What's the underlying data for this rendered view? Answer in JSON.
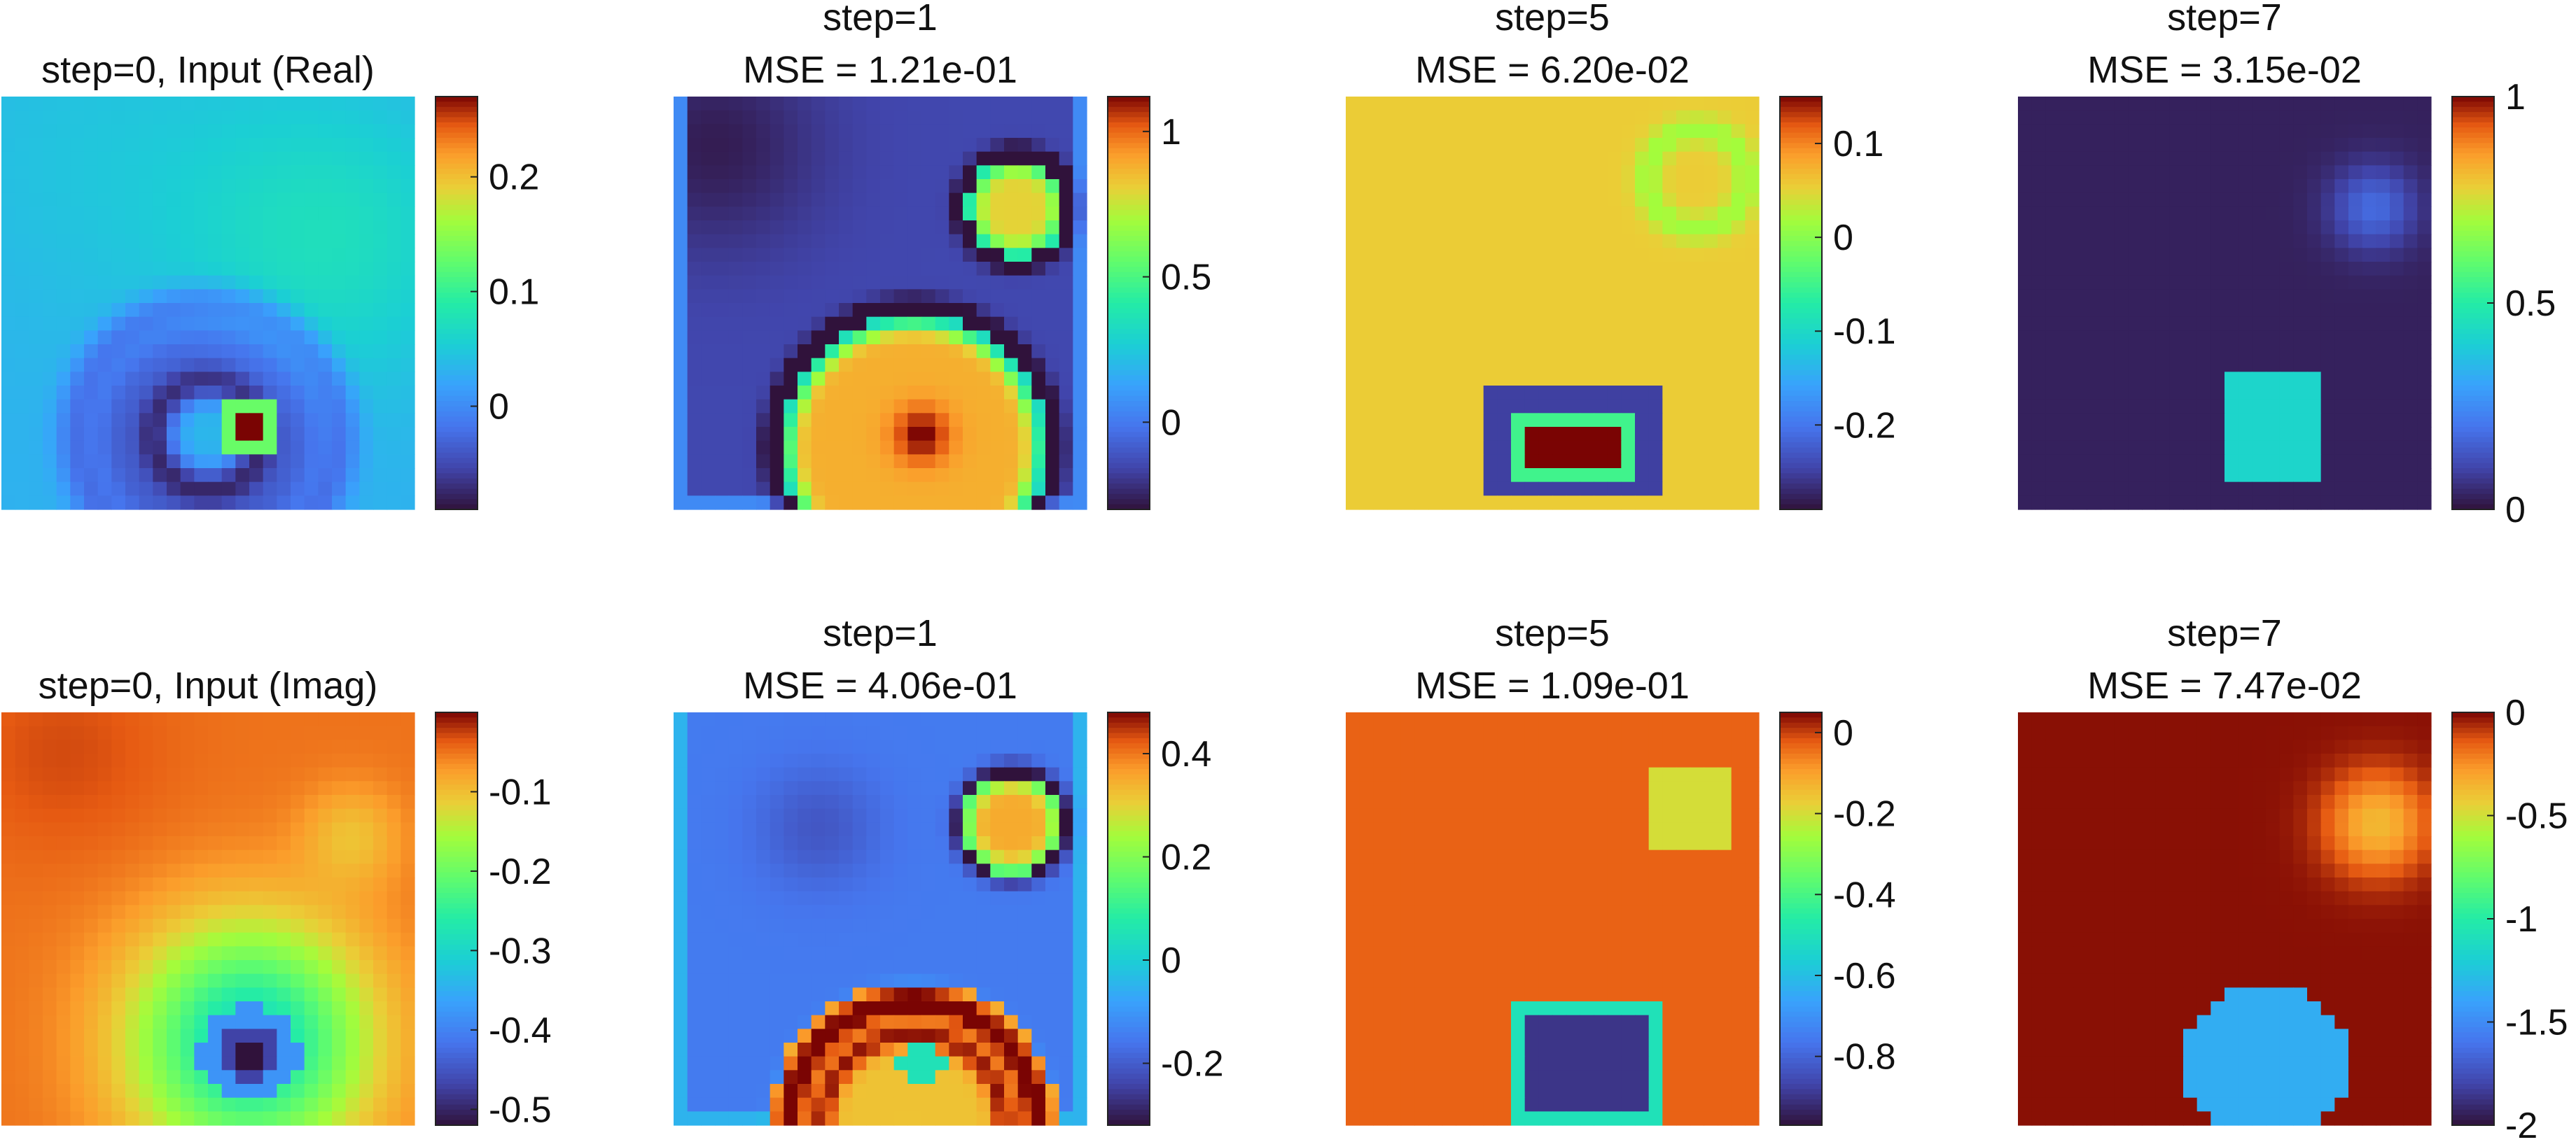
{
  "colormap": "turbo",
  "chart_data": [
    {
      "type": "heatmap",
      "row": 0,
      "col": 0,
      "title_lines": [
        "step=0, Input (Real)"
      ],
      "clim": [
        -0.09,
        0.27
      ],
      "colorbar_ticks": [
        {
          "value": 0,
          "label": "0"
        },
        {
          "value": 0.1,
          "label": "0.1"
        },
        {
          "value": 0.2,
          "label": "0.2"
        }
      ],
      "pattern": {
        "base": 0.03,
        "features": [
          {
            "kind": "blob",
            "cx": 0.8,
            "cy": 0.35,
            "r": 0.35,
            "amp": 0.04
          },
          {
            "kind": "blob",
            "cx": 0.25,
            "cy": 0.15,
            "r": 0.45,
            "amp": 0.015
          },
          {
            "kind": "ring",
            "cx": 0.5,
            "cy": 0.82,
            "r": 0.22,
            "w": 0.06,
            "amp": -0.06
          },
          {
            "kind": "ring",
            "cx": 0.5,
            "cy": 0.82,
            "r": 0.32,
            "w": 0.05,
            "amp": -0.05
          },
          {
            "kind": "ring",
            "cx": 0.5,
            "cy": 0.82,
            "r": 0.13,
            "w": 0.05,
            "amp": -0.1
          },
          {
            "kind": "disk",
            "cx": 0.6,
            "cy": 0.8,
            "r": 0.08,
            "val": 0.13
          },
          {
            "kind": "disk",
            "cx": 0.6,
            "cy": 0.8,
            "r": 0.045,
            "val": 0.27
          }
        ]
      }
    },
    {
      "type": "heatmap",
      "row": 0,
      "col": 1,
      "title_lines": [
        "step=1",
        "MSE = 1.21e-01"
      ],
      "clim": [
        -0.3,
        1.12
      ],
      "colorbar_ticks": [
        {
          "value": 0,
          "label": "0"
        },
        {
          "value": 0.5,
          "label": "0.5"
        },
        {
          "value": 1,
          "label": "1"
        }
      ],
      "pattern": {
        "base": -0.15,
        "features": [
          {
            "kind": "blob",
            "cx": 0.1,
            "cy": 0.12,
            "r": 0.25,
            "amp": -0.12
          },
          {
            "kind": "border",
            "w": 0.045,
            "val": 0.05
          },
          {
            "kind": "disk",
            "cx": 0.58,
            "cy": 0.85,
            "r": 0.32,
            "val": 0.88
          },
          {
            "kind": "ring",
            "cx": 0.58,
            "cy": 0.85,
            "r": 0.32,
            "w": 0.035,
            "amp": -0.55
          },
          {
            "kind": "blob",
            "cx": 0.6,
            "cy": 0.82,
            "r": 0.07,
            "amp": 0.25
          },
          {
            "kind": "disk",
            "cx": 0.83,
            "cy": 0.27,
            "r": 0.12,
            "val": 0.8
          },
          {
            "kind": "ring",
            "cx": 0.83,
            "cy": 0.27,
            "r": 0.12,
            "w": 0.03,
            "amp": -0.4
          }
        ]
      }
    },
    {
      "type": "heatmap",
      "row": 0,
      "col": 2,
      "title_lines": [
        "step=5",
        "MSE = 6.20e-02"
      ],
      "clim": [
        -0.29,
        0.15
      ],
      "colorbar_ticks": [
        {
          "value": -0.2,
          "label": "-0.2"
        },
        {
          "value": -0.1,
          "label": "-0.1"
        },
        {
          "value": 0,
          "label": "0"
        },
        {
          "value": 0.1,
          "label": "0.1"
        }
      ],
      "pattern": {
        "base": 0.055,
        "features": [
          {
            "kind": "ring",
            "cx": 0.85,
            "cy": 0.2,
            "r": 0.12,
            "w": 0.035,
            "amp": -0.04
          },
          {
            "kind": "rect",
            "x0": 0.35,
            "y0": 0.7,
            "x1": 0.75,
            "y1": 0.97,
            "val": -0.25
          },
          {
            "kind": "rect",
            "x0": 0.41,
            "y0": 0.77,
            "x1": 0.69,
            "y1": 0.92,
            "val": -0.05
          },
          {
            "kind": "rect",
            "x0": 0.45,
            "y0": 0.8,
            "x1": 0.65,
            "y1": 0.9,
            "val": 0.15
          }
        ]
      }
    },
    {
      "type": "heatmap",
      "row": 0,
      "col": 3,
      "title_lines": [
        "step=7",
        "MSE = 3.15e-02"
      ],
      "clim": [
        0,
        1
      ],
      "colorbar_ticks": [
        {
          "value": 0,
          "label": "0"
        },
        {
          "value": 0.5,
          "label": "0.5"
        },
        {
          "value": 1,
          "label": "1"
        }
      ],
      "pattern": {
        "base": 0.03,
        "features": [
          {
            "kind": "blob",
            "cx": 0.86,
            "cy": 0.27,
            "r": 0.1,
            "amp": 0.15
          },
          {
            "kind": "rect",
            "x0": 0.49,
            "y0": 0.68,
            "x1": 0.74,
            "y1": 0.92,
            "val": 0.42
          }
        ]
      }
    },
    {
      "type": "heatmap",
      "row": 1,
      "col": 0,
      "title_lines": [
        "step=0, Input (Imag)"
      ],
      "clim": [
        -0.52,
        0
      ],
      "colorbar_ticks": [
        {
          "value": -0.5,
          "label": "-0.5"
        },
        {
          "value": -0.4,
          "label": "-0.4"
        },
        {
          "value": -0.3,
          "label": "-0.3"
        },
        {
          "value": -0.2,
          "label": "-0.2"
        },
        {
          "value": -0.1,
          "label": "-0.1"
        }
      ],
      "pattern": {
        "base": -0.05,
        "features": [
          {
            "kind": "blob",
            "cx": 0.15,
            "cy": 0.1,
            "r": 0.25,
            "amp": 0.02
          },
          {
            "kind": "blob",
            "cx": 0.85,
            "cy": 0.3,
            "r": 0.12,
            "amp": -0.05
          },
          {
            "kind": "blob",
            "cx": 0.6,
            "cy": 0.8,
            "r": 0.28,
            "amp": -0.25
          },
          {
            "kind": "disk",
            "cx": 0.6,
            "cy": 0.83,
            "r": 0.12,
            "val": -0.38
          },
          {
            "kind": "disk",
            "cx": 0.6,
            "cy": 0.83,
            "r": 0.07,
            "val": -0.47
          },
          {
            "kind": "disk",
            "cx": 0.6,
            "cy": 0.84,
            "r": 0.035,
            "val": -0.52
          }
        ]
      }
    },
    {
      "type": "heatmap",
      "row": 1,
      "col": 1,
      "title_lines": [
        "step=1",
        "MSE = 4.06e-01"
      ],
      "clim": [
        -0.32,
        0.48
      ],
      "colorbar_ticks": [
        {
          "value": -0.2,
          "label": "-0.2"
        },
        {
          "value": 0,
          "label": "0"
        },
        {
          "value": 0.2,
          "label": "0.2"
        },
        {
          "value": 0.4,
          "label": "0.4"
        }
      ],
      "pattern": {
        "base": -0.15,
        "features": [
          {
            "kind": "blob",
            "cx": 0.35,
            "cy": 0.28,
            "r": 0.15,
            "amp": -0.06
          },
          {
            "kind": "border",
            "w": 0.045,
            "val": -0.05
          },
          {
            "kind": "disk",
            "cx": 0.58,
            "cy": 1.0,
            "r": 0.35,
            "val": 0.32
          },
          {
            "kind": "ring",
            "cx": 0.58,
            "cy": 1.0,
            "r": 0.3,
            "w": 0.035,
            "amp": 0.2
          },
          {
            "kind": "ring",
            "cx": 0.58,
            "cy": 1.0,
            "r": 0.22,
            "w": 0.03,
            "amp": 0.15
          },
          {
            "kind": "disk",
            "cx": 0.6,
            "cy": 0.85,
            "r": 0.06,
            "val": 0.05
          },
          {
            "kind": "disk",
            "cx": 0.82,
            "cy": 0.27,
            "r": 0.12,
            "val": 0.35
          },
          {
            "kind": "ring",
            "cx": 0.82,
            "cy": 0.27,
            "r": 0.12,
            "w": 0.03,
            "amp": -0.2
          }
        ]
      }
    },
    {
      "type": "heatmap",
      "row": 1,
      "col": 2,
      "title_lines": [
        "step=5",
        "MSE = 1.09e-01"
      ],
      "clim": [
        -0.97,
        0.05
      ],
      "colorbar_ticks": [
        {
          "value": -0.8,
          "label": "-0.8"
        },
        {
          "value": -0.6,
          "label": "-0.6"
        },
        {
          "value": -0.4,
          "label": "-0.4"
        },
        {
          "value": -0.2,
          "label": "-0.2"
        },
        {
          "value": 0,
          "label": "0"
        }
      ],
      "pattern": {
        "base": -0.03,
        "features": [
          {
            "kind": "rect",
            "x0": 0.75,
            "y0": 0.13,
            "x1": 0.93,
            "y1": 0.33,
            "val": -0.2
          },
          {
            "kind": "rect",
            "x0": 0.4,
            "y0": 0.7,
            "x1": 0.78,
            "y1": 1.0,
            "val": -0.5
          },
          {
            "kind": "rect",
            "x0": 0.45,
            "y0": 0.74,
            "x1": 0.73,
            "y1": 0.95,
            "val": -0.9
          }
        ]
      }
    },
    {
      "type": "heatmap",
      "row": 1,
      "col": 3,
      "title_lines": [
        "step=7",
        "MSE = 7.47e-02"
      ],
      "clim": [
        -2,
        0
      ],
      "colorbar_ticks": [
        {
          "value": -2,
          "label": "-2"
        },
        {
          "value": -1.5,
          "label": "-1.5"
        },
        {
          "value": -1,
          "label": "-1"
        },
        {
          "value": -0.5,
          "label": "-0.5"
        },
        {
          "value": 0,
          "label": "0"
        }
      ],
      "pattern": {
        "base": -0.02,
        "features": [
          {
            "kind": "blob",
            "cx": 0.87,
            "cy": 0.27,
            "r": 0.12,
            "amp": -0.35
          },
          {
            "kind": "disk",
            "cx": 0.6,
            "cy": 0.85,
            "r": 0.2,
            "val": -1.35
          }
        ]
      }
    }
  ]
}
